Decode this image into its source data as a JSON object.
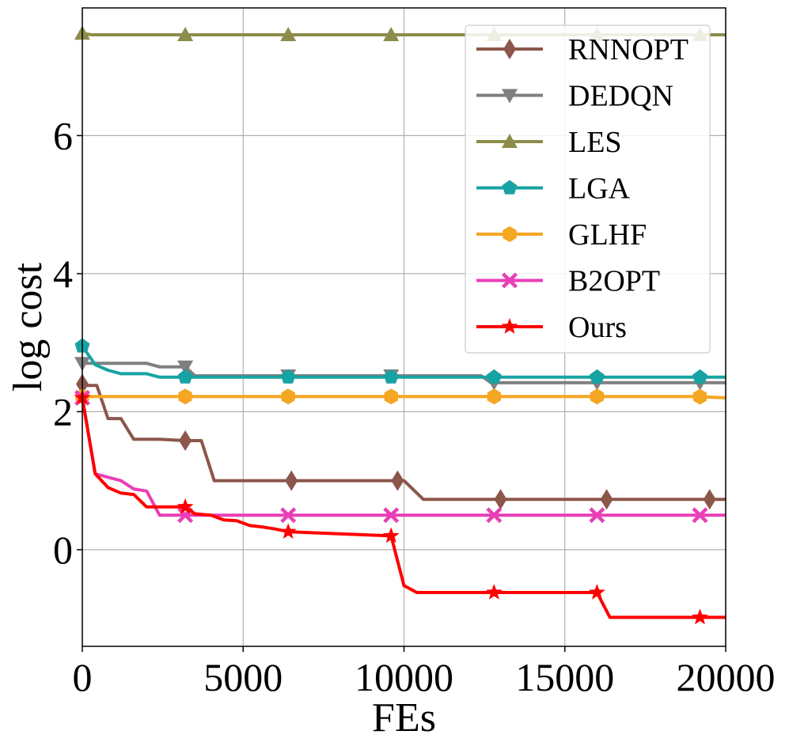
{
  "chart_data": {
    "type": "line",
    "title": "",
    "xlabel": "FEs",
    "ylabel": "log cost",
    "xlim": [
      0,
      20000
    ],
    "ylim": [
      -1.4,
      7.85
    ],
    "xticks": [
      0,
      5000,
      10000,
      15000,
      20000
    ],
    "yticks": [
      0,
      2,
      4,
      6
    ],
    "grid": true,
    "legend_position": "top-right",
    "series": [
      {
        "name": "RNNOPT",
        "color": "#8c564b",
        "marker": "diamond",
        "points": [
          [
            0,
            2.4
          ],
          [
            150,
            2.38
          ],
          [
            450,
            2.38
          ],
          [
            800,
            1.9
          ],
          [
            1200,
            1.9
          ],
          [
            1600,
            1.6
          ],
          [
            2400,
            1.6
          ],
          [
            3200,
            1.58
          ],
          [
            3700,
            1.58
          ],
          [
            4100,
            1.0
          ],
          [
            6400,
            1.0
          ],
          [
            9600,
            1.0
          ],
          [
            10000,
            1.0
          ],
          [
            10600,
            0.73
          ],
          [
            13000,
            0.73
          ],
          [
            16300,
            0.73
          ],
          [
            19500,
            0.73
          ],
          [
            20000,
            0.73
          ]
        ],
        "markers_at": [
          0,
          3200,
          6500,
          9800,
          13000,
          16300,
          19500
        ]
      },
      {
        "name": "DEDQN",
        "color": "#7f7f7f",
        "marker": "triangle-down",
        "points": [
          [
            0,
            2.7
          ],
          [
            1000,
            2.7
          ],
          [
            2000,
            2.7
          ],
          [
            2400,
            2.65
          ],
          [
            3200,
            2.65
          ],
          [
            3500,
            2.52
          ],
          [
            9600,
            2.52
          ],
          [
            12400,
            2.52
          ],
          [
            12700,
            2.42
          ],
          [
            20000,
            2.42
          ]
        ],
        "markers_at": [
          0,
          3200,
          6400,
          9600,
          12800,
          16000,
          19200
        ]
      },
      {
        "name": "LES",
        "color": "#8c8c4b",
        "marker": "triangle-up",
        "points": [
          [
            0,
            7.48
          ],
          [
            300,
            7.46
          ],
          [
            20000,
            7.46
          ]
        ],
        "markers_at": [
          0,
          3200,
          6400,
          9600,
          12800,
          16000,
          19200
        ]
      },
      {
        "name": "LGA",
        "color": "#17a3a3",
        "marker": "pentagon",
        "points": [
          [
            0,
            2.95
          ],
          [
            400,
            2.68
          ],
          [
            800,
            2.6
          ],
          [
            1200,
            2.55
          ],
          [
            2000,
            2.55
          ],
          [
            2400,
            2.5
          ],
          [
            20000,
            2.5
          ]
        ],
        "markers_at": [
          0,
          3200,
          6400,
          9600,
          12800,
          16000,
          19200
        ]
      },
      {
        "name": "GLHF",
        "color": "#f5a623",
        "marker": "hexagon",
        "points": [
          [
            0,
            2.22
          ],
          [
            19000,
            2.22
          ],
          [
            20000,
            2.2
          ]
        ],
        "markers_at": [
          0,
          3200,
          6400,
          9600,
          12800,
          16000,
          19200
        ]
      },
      {
        "name": "B2OPT",
        "color": "#e83fb6",
        "marker": "x",
        "points": [
          [
            0,
            2.2
          ],
          [
            400,
            1.1
          ],
          [
            800,
            1.05
          ],
          [
            1200,
            1.0
          ],
          [
            1600,
            0.88
          ],
          [
            2000,
            0.85
          ],
          [
            2400,
            0.5
          ],
          [
            20000,
            0.5
          ]
        ],
        "markers_at": [
          0,
          3200,
          6400,
          9600,
          12800,
          16000,
          19200
        ]
      },
      {
        "name": "Ours",
        "color": "#ff0000",
        "marker": "star",
        "points": [
          [
            0,
            2.2
          ],
          [
            400,
            1.1
          ],
          [
            800,
            0.9
          ],
          [
            1200,
            0.82
          ],
          [
            1600,
            0.8
          ],
          [
            2000,
            0.62
          ],
          [
            3200,
            0.62
          ],
          [
            3500,
            0.52
          ],
          [
            4000,
            0.5
          ],
          [
            4400,
            0.43
          ],
          [
            4800,
            0.42
          ],
          [
            5200,
            0.35
          ],
          [
            5600,
            0.33
          ],
          [
            6000,
            0.3
          ],
          [
            6400,
            0.26
          ],
          [
            9600,
            0.2
          ],
          [
            10000,
            -0.52
          ],
          [
            10400,
            -0.62
          ],
          [
            16000,
            -0.62
          ],
          [
            16400,
            -0.98
          ],
          [
            20000,
            -0.98
          ]
        ],
        "markers_at": [
          0,
          3200,
          6400,
          9600,
          12800,
          16000,
          19200
        ]
      }
    ]
  }
}
